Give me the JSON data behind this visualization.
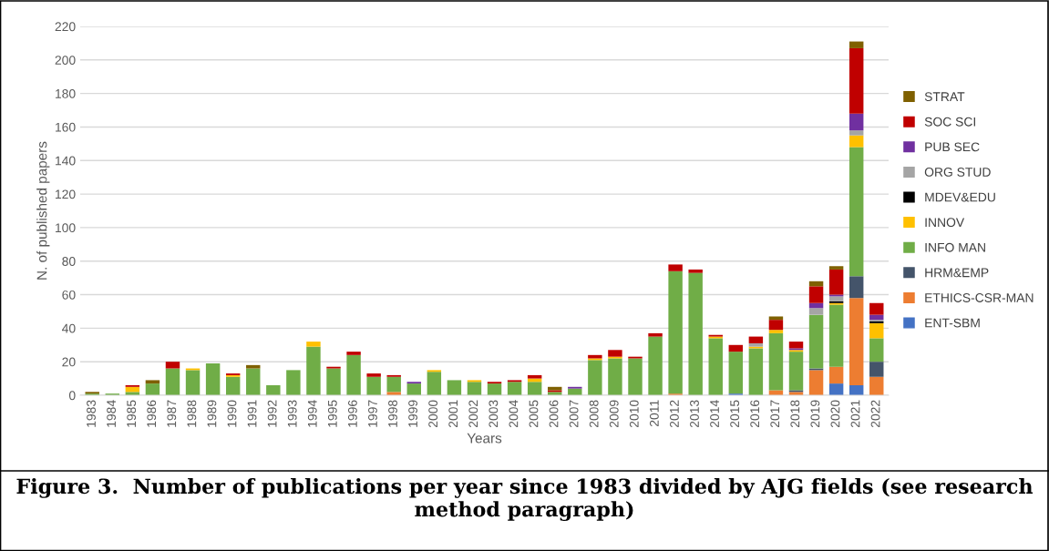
{
  "chart_data": {
    "type": "bar",
    "stacked": true,
    "title": "Figure 3.  Number of publications per year since 1983 divided by AJG fields (see research method paragraph)",
    "xlabel": "Years",
    "ylabel": "N. of published papers",
    "categories": [
      "1983",
      "1984",
      "1985",
      "1986",
      "1987",
      "1988",
      "1989",
      "1990",
      "1991",
      "1992",
      "1993",
      "1994",
      "1995",
      "1996",
      "1997",
      "1998",
      "1999",
      "2000",
      "2001",
      "2002",
      "2003",
      "2004",
      "2005",
      "2006",
      "2007",
      "2008",
      "2009",
      "2010",
      "2011",
      "2012",
      "2013",
      "2014",
      "2015",
      "2016",
      "2017",
      "2018",
      "2019",
      "2020",
      "2021",
      "2022"
    ],
    "series": [
      {
        "name": "ENT-SBM",
        "color": "#4472c4",
        "values": [
          0,
          0,
          0,
          0,
          0,
          0,
          0,
          0,
          0,
          0,
          0,
          0,
          0,
          0,
          0,
          0,
          0,
          0,
          0,
          0,
          0,
          0,
          0,
          0,
          0,
          0,
          0,
          0,
          0,
          0,
          0,
          0,
          1,
          0,
          0,
          0,
          0,
          7,
          6,
          0
        ]
      },
      {
        "name": "ETHICS-CSR-MAN",
        "color": "#ed7d31",
        "values": [
          0,
          0,
          0,
          0,
          0,
          0,
          0,
          0,
          0,
          0,
          0,
          0,
          0,
          0,
          0,
          2,
          0,
          0,
          0,
          0,
          0,
          0,
          0,
          0,
          0,
          0,
          0,
          0,
          0,
          1,
          0,
          0,
          0,
          0,
          3,
          2,
          15,
          10,
          52,
          11
        ]
      },
      {
        "name": "HRM&EMP",
        "color": "#44546a",
        "values": [
          0,
          0,
          0,
          0,
          0,
          0,
          0,
          0,
          0,
          0,
          0,
          0,
          0,
          0,
          0,
          0,
          0,
          0,
          0,
          0,
          0,
          0,
          0,
          0,
          0,
          0,
          0,
          0,
          0,
          0,
          0,
          0,
          0,
          0,
          0,
          1,
          1,
          0,
          13,
          9
        ]
      },
      {
        "name": "INFO MAN",
        "color": "#70ad47",
        "values": [
          1,
          1,
          2,
          7,
          16,
          15,
          19,
          11,
          16,
          6,
          15,
          29,
          16,
          24,
          11,
          9,
          7,
          14,
          9,
          8,
          7,
          8,
          8,
          2,
          4,
          21,
          22,
          22,
          35,
          73,
          73,
          34,
          25,
          28,
          34,
          23,
          32,
          37,
          77,
          14
        ]
      },
      {
        "name": "INNOV",
        "color": "#ffc000",
        "values": [
          0,
          0,
          3,
          0,
          0,
          1,
          0,
          1,
          0,
          0,
          0,
          3,
          0,
          0,
          0,
          0,
          0,
          1,
          0,
          1,
          0,
          0,
          2,
          0,
          0,
          1,
          1,
          0,
          0,
          0,
          0,
          1,
          0,
          1,
          2,
          1,
          0,
          1,
          7,
          9
        ]
      },
      {
        "name": "MDEV&EDU",
        "color": "#000000",
        "values": [
          0,
          0,
          0,
          0,
          0,
          0,
          0,
          0,
          0,
          0,
          0,
          0,
          0,
          0,
          0,
          0,
          0,
          0,
          0,
          0,
          0,
          0,
          0,
          0,
          0,
          0,
          0,
          0,
          0,
          0,
          0,
          0,
          0,
          0,
          0,
          0,
          0,
          1,
          0,
          1
        ]
      },
      {
        "name": "ORG STUD",
        "color": "#a5a5a5",
        "values": [
          0,
          0,
          0,
          0,
          0,
          0,
          0,
          0,
          0,
          0,
          0,
          0,
          0,
          0,
          0,
          0,
          0,
          0,
          0,
          0,
          0,
          0,
          0,
          0,
          0,
          0,
          0,
          0,
          0,
          0,
          0,
          0,
          0,
          2,
          0,
          0,
          4,
          3,
          3,
          1
        ]
      },
      {
        "name": "PUB SEC",
        "color": "#7030a0",
        "values": [
          0,
          0,
          0,
          0,
          0,
          0,
          0,
          0,
          0,
          0,
          0,
          0,
          0,
          0,
          0,
          0,
          1,
          0,
          0,
          0,
          0,
          0,
          0,
          0,
          1,
          0,
          0,
          0,
          0,
          0,
          0,
          0,
          0,
          0,
          0,
          1,
          3,
          1,
          10,
          3
        ]
      },
      {
        "name": "SOC SCI",
        "color": "#c00000",
        "values": [
          0,
          0,
          1,
          0,
          4,
          0,
          0,
          1,
          0,
          0,
          0,
          0,
          1,
          2,
          2,
          1,
          0,
          0,
          0,
          0,
          1,
          1,
          2,
          1,
          0,
          2,
          4,
          1,
          2,
          4,
          2,
          1,
          4,
          4,
          6,
          4,
          10,
          15,
          39,
          7
        ]
      },
      {
        "name": "STRAT",
        "color": "#7f6000",
        "values": [
          1,
          0,
          0,
          2,
          0,
          0,
          0,
          0,
          2,
          0,
          0,
          0,
          0,
          0,
          0,
          0,
          0,
          0,
          0,
          0,
          0,
          0,
          0,
          2,
          0,
          0,
          0,
          0,
          0,
          0,
          0,
          0,
          0,
          0,
          2,
          0,
          3,
          2,
          4,
          0
        ]
      }
    ],
    "ylim": [
      0,
      220
    ],
    "yticks": [
      0,
      20,
      40,
      60,
      80,
      100,
      120,
      140,
      160,
      180,
      200,
      220
    ],
    "grid": "y",
    "legend": "right"
  }
}
